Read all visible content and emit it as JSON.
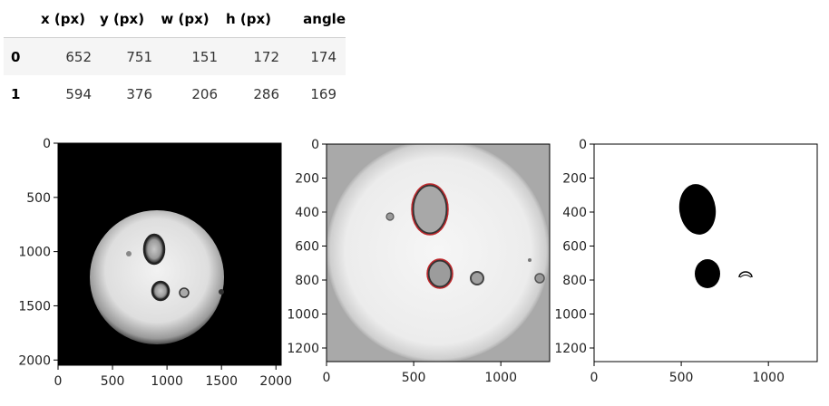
{
  "table": {
    "columns": [
      "x (px)",
      "y (px)",
      "w (px)",
      "h (px)",
      "angle"
    ],
    "rows": [
      {
        "index": "0",
        "values": [
          "652",
          "751",
          "151",
          "172",
          "174"
        ]
      },
      {
        "index": "1",
        "values": [
          "594",
          "376",
          "206",
          "286",
          "169"
        ]
      }
    ]
  },
  "chart_data": [
    {
      "type": "image",
      "image_content": "grayscale raw drop image on black background",
      "xlim": [
        0,
        2048
      ],
      "ylim": [
        2048,
        0
      ],
      "x_ticks": [
        0,
        500,
        1000,
        1500,
        2000
      ],
      "y_ticks": [
        0,
        500,
        1000,
        1500,
        2000
      ]
    },
    {
      "type": "image",
      "image_content": "cropped drop image with detected ellipses outlined in red",
      "xlim": [
        0,
        1280
      ],
      "ylim": [
        1280,
        0
      ],
      "x_ticks": [
        0,
        500,
        1000
      ],
      "y_ticks": [
        0,
        200,
        400,
        600,
        800,
        1000,
        1200
      ]
    },
    {
      "type": "image",
      "image_content": "binary mask of detected bubbles",
      "xlim": [
        0,
        1280
      ],
      "ylim": [
        1280,
        0
      ],
      "x_ticks": [
        0,
        500,
        1000
      ],
      "y_ticks": [
        0,
        200,
        400,
        600,
        800,
        1000,
        1200
      ]
    }
  ],
  "colors": {
    "ellipse_outline": "#c0282c",
    "mask_fill": "#000000"
  }
}
